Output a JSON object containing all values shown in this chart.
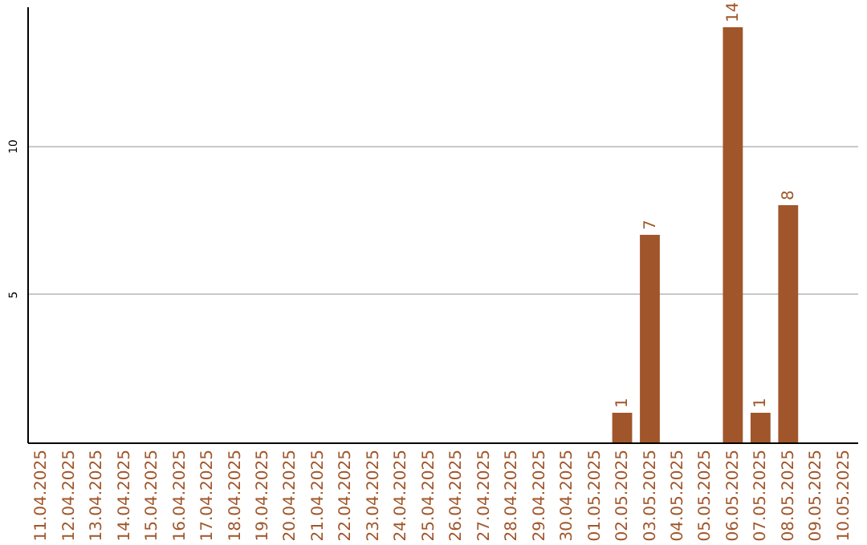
{
  "chart_data": {
    "type": "bar",
    "categories": [
      "11.04.2025",
      "12.04.2025",
      "13.04.2025",
      "14.04.2025",
      "15.04.2025",
      "16.04.2025",
      "17.04.2025",
      "18.04.2025",
      "19.04.2025",
      "20.04.2025",
      "21.04.2025",
      "22.04.2025",
      "23.04.2025",
      "24.04.2025",
      "25.04.2025",
      "26.04.2025",
      "27.04.2025",
      "28.04.2025",
      "29.04.2025",
      "30.04.2025",
      "01.05.2025",
      "02.05.2025",
      "03.05.2025",
      "04.05.2025",
      "05.05.2025",
      "06.05.2025",
      "07.05.2025",
      "08.05.2025",
      "09.05.2025",
      "10.05.2025"
    ],
    "values": [
      0,
      0,
      0,
      0,
      0,
      0,
      0,
      0,
      0,
      0,
      0,
      0,
      0,
      0,
      0,
      0,
      0,
      0,
      0,
      0,
      0,
      1,
      7,
      0,
      0,
      14,
      1,
      8,
      0,
      0
    ],
    "value_labels": [
      null,
      null,
      null,
      null,
      null,
      null,
      null,
      null,
      null,
      null,
      null,
      null,
      null,
      null,
      null,
      null,
      null,
      null,
      null,
      null,
      null,
      "1",
      "7",
      null,
      null,
      "14",
      "1",
      "8",
      null,
      null
    ],
    "color": "#a0562a",
    "ylim": [
      0,
      14.7
    ],
    "yticks": [
      5,
      10
    ],
    "grid": "y"
  }
}
